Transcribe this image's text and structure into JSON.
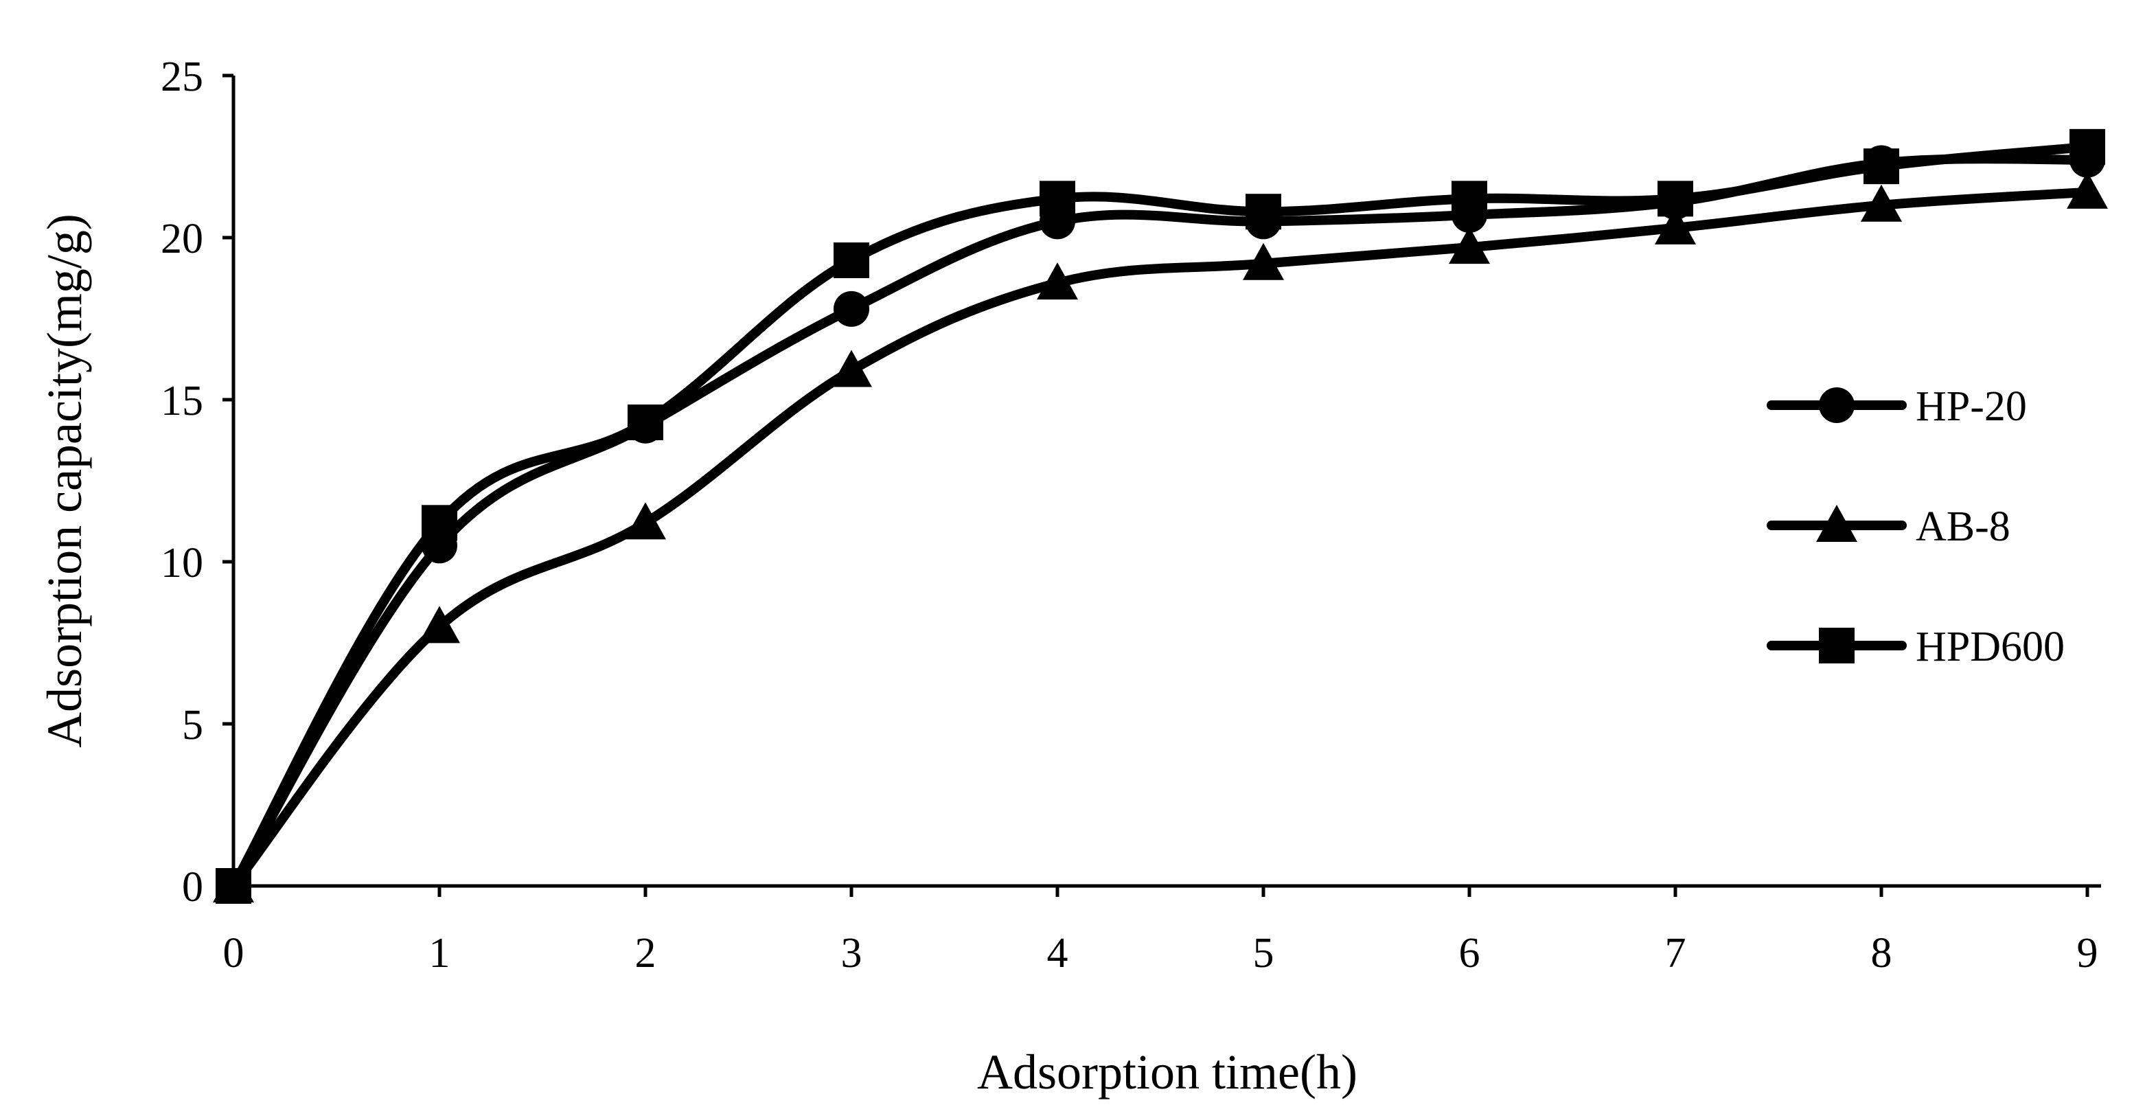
{
  "chart_data": {
    "type": "line",
    "title": "",
    "xlabel": "Adsorption time(h)",
    "ylabel": "Adsorption capacity(mg/g)",
    "x": [
      0,
      1,
      2,
      3,
      4,
      5,
      6,
      7,
      8,
      9
    ],
    "xlim": [
      0,
      9
    ],
    "ylim": [
      0,
      25
    ],
    "xticks": [
      "0",
      "1",
      "2",
      "3",
      "4",
      "5",
      "6",
      "7",
      "8",
      "9"
    ],
    "yticks": [
      "0",
      "5",
      "10",
      "15",
      "20",
      "25"
    ],
    "grid": false,
    "legend_position": "right",
    "series": [
      {
        "name": "HP-20",
        "marker": "circle",
        "values": [
          0,
          10.5,
          14.2,
          17.8,
          20.5,
          20.5,
          20.7,
          21.1,
          22.3,
          22.4
        ]
      },
      {
        "name": "AB-8",
        "marker": "triangle",
        "values": [
          0,
          8.0,
          11.2,
          15.9,
          18.6,
          19.2,
          19.7,
          20.3,
          21.0,
          21.4
        ]
      },
      {
        "name": "HPD600",
        "marker": "square",
        "values": [
          0,
          11.2,
          14.3,
          19.3,
          21.2,
          20.8,
          21.2,
          21.2,
          22.2,
          22.8
        ]
      }
    ]
  }
}
